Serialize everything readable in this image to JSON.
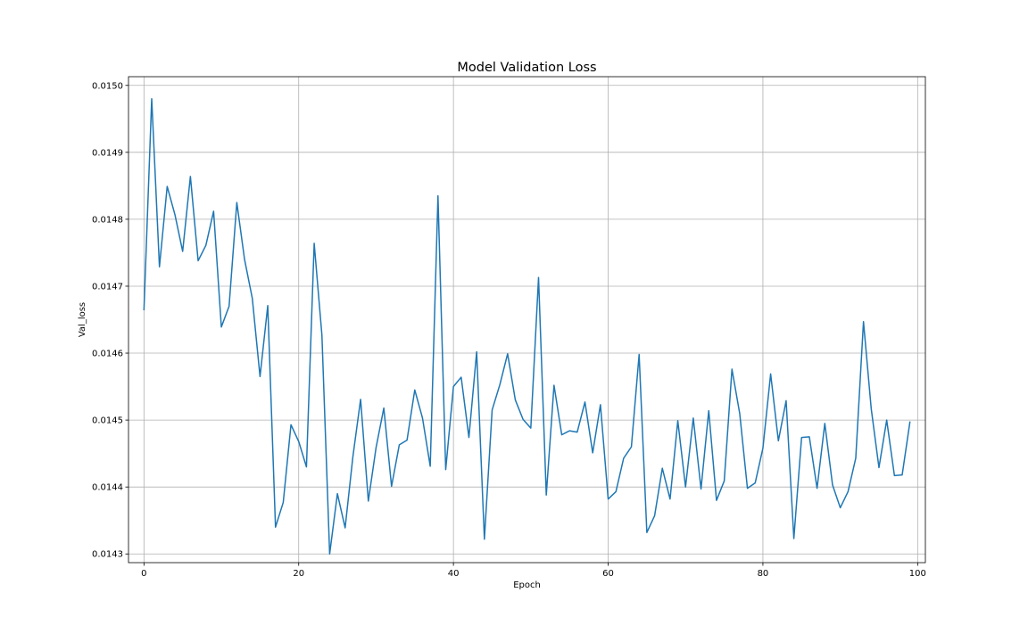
{
  "chart_data": {
    "type": "line",
    "title": "Model Validation Loss",
    "xlabel": "Epoch",
    "ylabel": "Val_loss",
    "xlim": [
      -2,
      101
    ],
    "ylim": [
      0.014287,
      0.015013
    ],
    "xticks": [
      0,
      20,
      40,
      60,
      80,
      100
    ],
    "xtick_labels": [
      "0",
      "20",
      "40",
      "60",
      "80",
      "100"
    ],
    "yticks": [
      0.0143,
      0.0144,
      0.0145,
      0.0146,
      0.0147,
      0.0148,
      0.0149,
      0.015
    ],
    "ytick_labels": [
      "0.0143",
      "0.0144",
      "0.0145",
      "0.0146",
      "0.0147",
      "0.0148",
      "0.0149",
      "0.0150"
    ],
    "grid": true,
    "colors": {
      "line": "#1f77b4",
      "grid": "#b0b0b0",
      "axes": "#000000"
    },
    "series": [
      {
        "x": [
          0,
          1,
          2,
          3,
          4,
          5,
          6,
          7,
          8,
          9,
          10,
          11,
          12,
          13,
          14,
          15,
          16,
          17,
          18,
          19,
          20,
          21,
          22,
          23,
          24,
          25,
          26,
          27,
          28,
          29,
          30,
          31,
          32,
          33,
          34,
          35,
          36,
          37,
          38,
          39,
          40,
          41,
          42,
          43,
          44,
          45,
          46,
          47,
          48,
          49,
          50,
          51,
          52,
          53,
          54,
          55,
          56,
          57,
          58,
          59,
          60,
          61,
          62,
          63,
          64,
          65,
          66,
          67,
          68,
          69,
          70,
          71,
          72,
          73,
          74,
          75,
          76,
          77,
          78,
          79,
          80,
          81,
          82,
          83,
          84,
          85,
          86,
          87,
          88,
          89,
          90,
          91,
          92,
          93,
          94,
          95,
          96,
          97,
          98,
          99
        ],
        "values": [
          0.014665,
          0.01498,
          0.014729,
          0.014849,
          0.014807,
          0.014752,
          0.014864,
          0.014738,
          0.014761,
          0.014812,
          0.014639,
          0.01467,
          0.014825,
          0.01474,
          0.014682,
          0.014565,
          0.014671,
          0.01434,
          0.014377,
          0.014493,
          0.014468,
          0.01443,
          0.014764,
          0.014627,
          0.0143,
          0.01439,
          0.014339,
          0.014445,
          0.014531,
          0.014379,
          0.014459,
          0.014518,
          0.014401,
          0.014463,
          0.01447,
          0.014545,
          0.014503,
          0.014431,
          0.014835,
          0.014426,
          0.01455,
          0.014564,
          0.014474,
          0.014602,
          0.014322,
          0.014515,
          0.014553,
          0.014599,
          0.01453,
          0.014501,
          0.014488,
          0.014713,
          0.014388,
          0.014552,
          0.014478,
          0.014484,
          0.014482,
          0.014527,
          0.014451,
          0.014523,
          0.014382,
          0.014393,
          0.014443,
          0.01446,
          0.014598,
          0.014332,
          0.014357,
          0.014428,
          0.014382,
          0.014499,
          0.0144,
          0.014503,
          0.014397,
          0.014514,
          0.01438,
          0.014409,
          0.014576,
          0.01451,
          0.014398,
          0.014406,
          0.014458,
          0.014569,
          0.014469,
          0.014529,
          0.014323,
          0.014474,
          0.014475,
          0.014398,
          0.014495,
          0.014403,
          0.014369,
          0.014393,
          0.014443,
          0.014647,
          0.014517,
          0.014429,
          0.0145,
          0.014417,
          0.014418,
          0.014497
        ]
      }
    ]
  }
}
